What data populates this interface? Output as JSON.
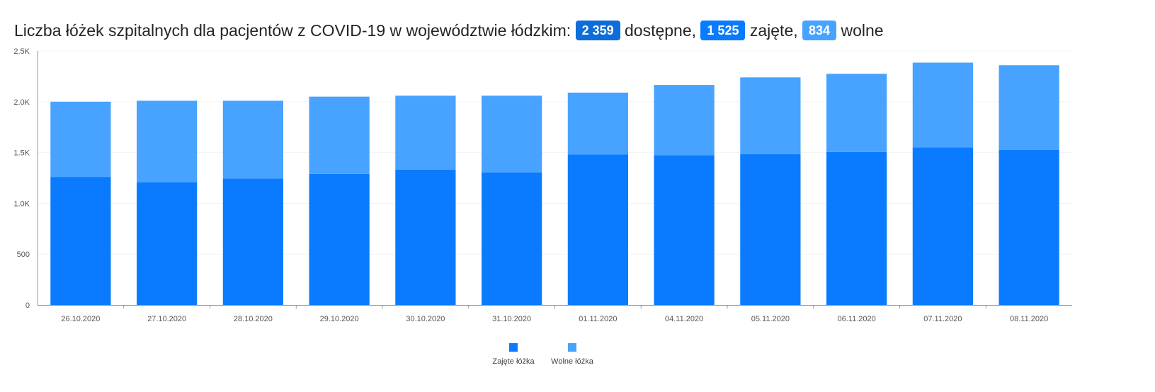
{
  "header": {
    "title_prefix": "Liczba łóżek szpitalnych dla pacjentów z COVID-19 w województwie łódzkim:",
    "available_value": "2 359",
    "available_label": "dostępne,",
    "occupied_value": "1 525",
    "occupied_label": "zajęte,",
    "free_value": "834",
    "free_label": "wolne"
  },
  "colors": {
    "occupied": "#0a7bff",
    "free": "#47a3ff",
    "axis": "#999999",
    "grid": "#f3f3f3"
  },
  "chart_data": {
    "type": "bar",
    "stacked": true,
    "categories": [
      "26.10.2020",
      "27.10.2020",
      "28.10.2020",
      "29.10.2020",
      "30.10.2020",
      "31.10.2020",
      "01.11.2020",
      "04.11.2020",
      "05.11.2020",
      "06.11.2020",
      "07.11.2020",
      "08.11.2020"
    ],
    "series": [
      {
        "name": "Zajęte łóżka",
        "color": "#0a7bff",
        "values": [
          1260,
          1210,
          1245,
          1290,
          1330,
          1305,
          1480,
          1475,
          1485,
          1505,
          1550,
          1525
        ]
      },
      {
        "name": "Wolne łóżka",
        "color": "#47a3ff",
        "values": [
          740,
          800,
          765,
          760,
          730,
          755,
          610,
          690,
          755,
          770,
          835,
          834
        ]
      }
    ],
    "ylim": [
      0,
      2500
    ],
    "yticks": [
      {
        "value": 0,
        "label": "0"
      },
      {
        "value": 500,
        "label": "500"
      },
      {
        "value": 1000,
        "label": "1.0K"
      },
      {
        "value": 1500,
        "label": "1.5K"
      },
      {
        "value": 2000,
        "label": "2.0K"
      },
      {
        "value": 2500,
        "label": "2.5K"
      }
    ],
    "grid": true,
    "legend_position": "bottom-center"
  }
}
